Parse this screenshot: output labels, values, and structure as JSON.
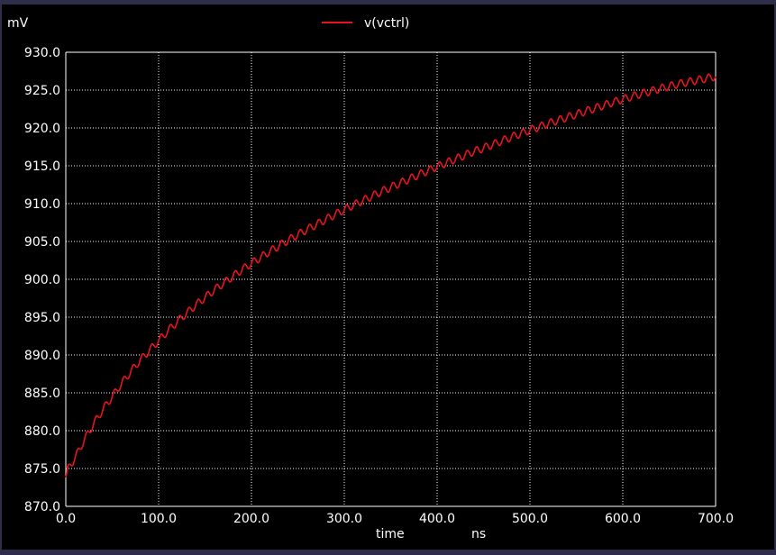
{
  "chart_data": {
    "type": "line",
    "title": "",
    "xlabel": "time",
    "xunit": "ns",
    "yunit": "mV",
    "xlim": [
      0,
      700
    ],
    "ylim": [
      870,
      930
    ],
    "x_ticks": [
      "0.0",
      "100.0",
      "200.0",
      "300.0",
      "400.0",
      "500.0",
      "600.0",
      "700.0"
    ],
    "y_ticks": [
      "870.0",
      "875.0",
      "880.0",
      "885.0",
      "890.0",
      "895.0",
      "900.0",
      "905.0",
      "910.0",
      "915.0",
      "920.0",
      "925.0",
      "930.0"
    ],
    "grid": true,
    "legend_position": "top-center",
    "colors": {
      "background": "#000000",
      "grid": "#ffffff",
      "text": "#ffffff",
      "frame": "#2e2e4a"
    },
    "series": [
      {
        "name": "v(vctrl)",
        "color": "#e8141c",
        "ripple_period": 10,
        "ripple_amplitude": 0.5,
        "x": [
          0,
          2,
          5,
          10,
          20,
          30,
          40,
          50,
          60,
          70,
          80,
          90,
          100,
          110,
          120,
          130,
          140,
          150,
          160,
          170,
          180,
          190,
          200,
          220,
          240,
          260,
          280,
          300,
          320,
          340,
          360,
          380,
          400,
          420,
          440,
          460,
          480,
          500,
          520,
          540,
          560,
          580,
          600,
          620,
          640,
          660,
          680,
          700
        ],
        "y": [
          873.8,
          874.8,
          875.5,
          876.4,
          878.8,
          880.9,
          882.8,
          884.5,
          886.2,
          887.8,
          889.3,
          890.6,
          891.9,
          893.2,
          894.4,
          895.5,
          896.6,
          897.6,
          898.6,
          899.5,
          900.4,
          901.3,
          902.1,
          903.7,
          905.2,
          906.6,
          907.9,
          909.2,
          910.4,
          911.6,
          912.7,
          913.8,
          914.9,
          915.9,
          916.9,
          917.8,
          918.8,
          919.7,
          920.6,
          921.4,
          922.2,
          923.0,
          923.8,
          924.5,
          925.2,
          925.8,
          926.3,
          926.8
        ]
      }
    ]
  }
}
